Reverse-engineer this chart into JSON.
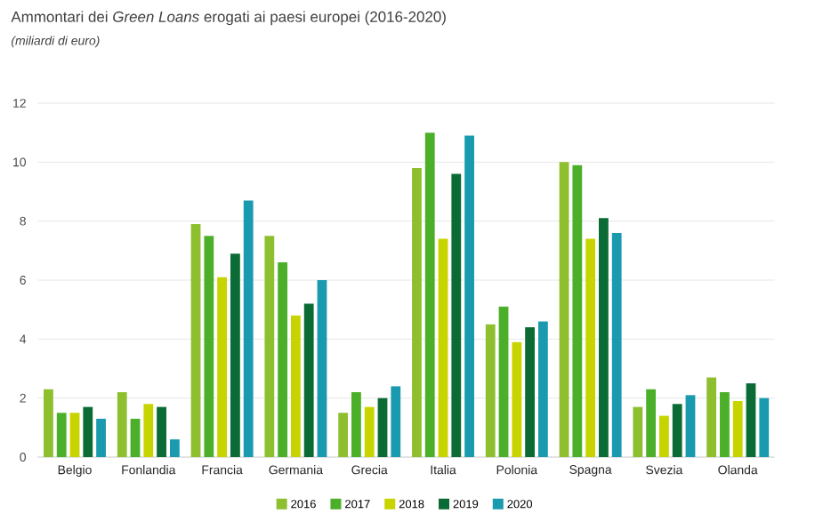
{
  "chart_data": {
    "type": "bar",
    "title": "Ammontari dei *Green Loans* erogati ai paesi europei (2016-2020)",
    "subtitle": "(miliardi di euro)",
    "categories": [
      "Belgio",
      "Fonlandia",
      "Francia",
      "Germania",
      "Grecia",
      "Italia",
      "Polonia",
      "Spagna",
      "Svezia",
      "Olanda"
    ],
    "series": [
      {
        "name": "2016",
        "color": "#8dbf2f",
        "values": [
          2.3,
          2.2,
          7.9,
          7.5,
          1.5,
          9.8,
          4.5,
          10.0,
          1.7,
          2.7
        ]
      },
      {
        "name": "2017",
        "color": "#4caf2a",
        "values": [
          1.5,
          1.3,
          7.5,
          6.6,
          2.2,
          11.0,
          5.1,
          9.9,
          2.3,
          2.2
        ]
      },
      {
        "name": "2018",
        "color": "#c8d400",
        "values": [
          1.5,
          1.8,
          6.1,
          4.8,
          1.7,
          7.4,
          3.9,
          7.4,
          1.4,
          1.9
        ]
      },
      {
        "name": "2019",
        "color": "#0b6b35",
        "values": [
          1.7,
          1.7,
          6.9,
          5.2,
          2.0,
          9.6,
          4.4,
          8.1,
          1.8,
          2.5
        ]
      },
      {
        "name": "2020",
        "color": "#1a9aae",
        "values": [
          1.3,
          0.6,
          8.7,
          6.0,
          2.4,
          10.9,
          4.6,
          7.6,
          2.1,
          2.0
        ]
      }
    ],
    "ylim": [
      0,
      12
    ],
    "yticks": [
      0,
      2,
      4,
      6,
      8,
      10,
      12
    ],
    "grid": "y",
    "legend": "bottom"
  }
}
